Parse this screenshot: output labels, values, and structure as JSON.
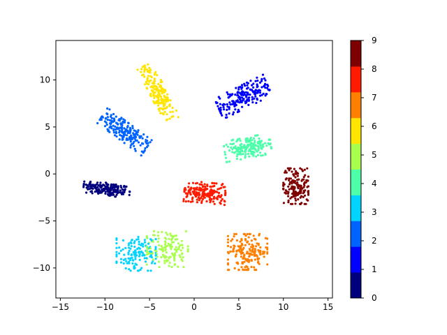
{
  "chart_data": {
    "type": "scatter",
    "title": "",
    "xlabel": "",
    "ylabel": "",
    "xlim": [
      -15.5,
      15.5
    ],
    "ylim": [
      -13.2,
      14.2
    ],
    "xticks": [
      -15,
      -10,
      -5,
      0,
      5,
      10,
      15
    ],
    "yticks": [
      -10,
      -5,
      0,
      5,
      10
    ],
    "grid": false,
    "colorbar": {
      "min": 0,
      "max": 9,
      "ticks": [
        0,
        1,
        2,
        3,
        4,
        5,
        6,
        7,
        8,
        9
      ],
      "colormap": "jet",
      "colors": [
        "#00007f",
        "#0000ff",
        "#0063ff",
        "#00d4ff",
        "#4dffa9",
        "#a9ff4d",
        "#ffe500",
        "#ff7f00",
        "#ff1a00",
        "#7f0000"
      ]
    },
    "clusters": [
      {
        "label": 0,
        "color": "#00007f",
        "center": [
          -9.8,
          -1.6
        ],
        "spread": [
          2.6,
          0.7
        ],
        "angle": -8,
        "n": 180
      },
      {
        "label": 1,
        "color": "#0000ff",
        "center": [
          5.5,
          8.2
        ],
        "spread": [
          3.0,
          1.2
        ],
        "angle": 25,
        "n": 200
      },
      {
        "label": 2,
        "color": "#0063ff",
        "center": [
          -7.8,
          4.5
        ],
        "spread": [
          3.0,
          1.0
        ],
        "angle": -35,
        "n": 200
      },
      {
        "label": 3,
        "color": "#00d4ff",
        "center": [
          -6.5,
          -8.5
        ],
        "spread": [
          2.2,
          1.8
        ],
        "angle": 0,
        "n": 130
      },
      {
        "label": 4,
        "color": "#4dffa9",
        "center": [
          6.0,
          2.8
        ],
        "spread": [
          2.6,
          1.1
        ],
        "angle": 10,
        "n": 180
      },
      {
        "label": 5,
        "color": "#a9ff4d",
        "center": [
          -3.0,
          -8.0
        ],
        "spread": [
          2.3,
          1.9
        ],
        "angle": 0,
        "n": 140
      },
      {
        "label": 6,
        "color": "#ffe500",
        "center": [
          -4.0,
          8.6
        ],
        "spread": [
          3.3,
          0.9
        ],
        "angle": -62,
        "n": 200
      },
      {
        "label": 7,
        "color": "#ff7f00",
        "center": [
          6.0,
          -8.3
        ],
        "spread": [
          2.2,
          1.9
        ],
        "angle": 0,
        "n": 180
      },
      {
        "label": 8,
        "color": "#ff1a00",
        "center": [
          1.2,
          -2.0
        ],
        "spread": [
          2.3,
          1.1
        ],
        "angle": -5,
        "n": 200
      },
      {
        "label": 9,
        "color": "#7f0000",
        "center": [
          11.4,
          -1.3
        ],
        "spread": [
          1.4,
          1.9
        ],
        "angle": 0,
        "n": 160
      }
    ]
  }
}
